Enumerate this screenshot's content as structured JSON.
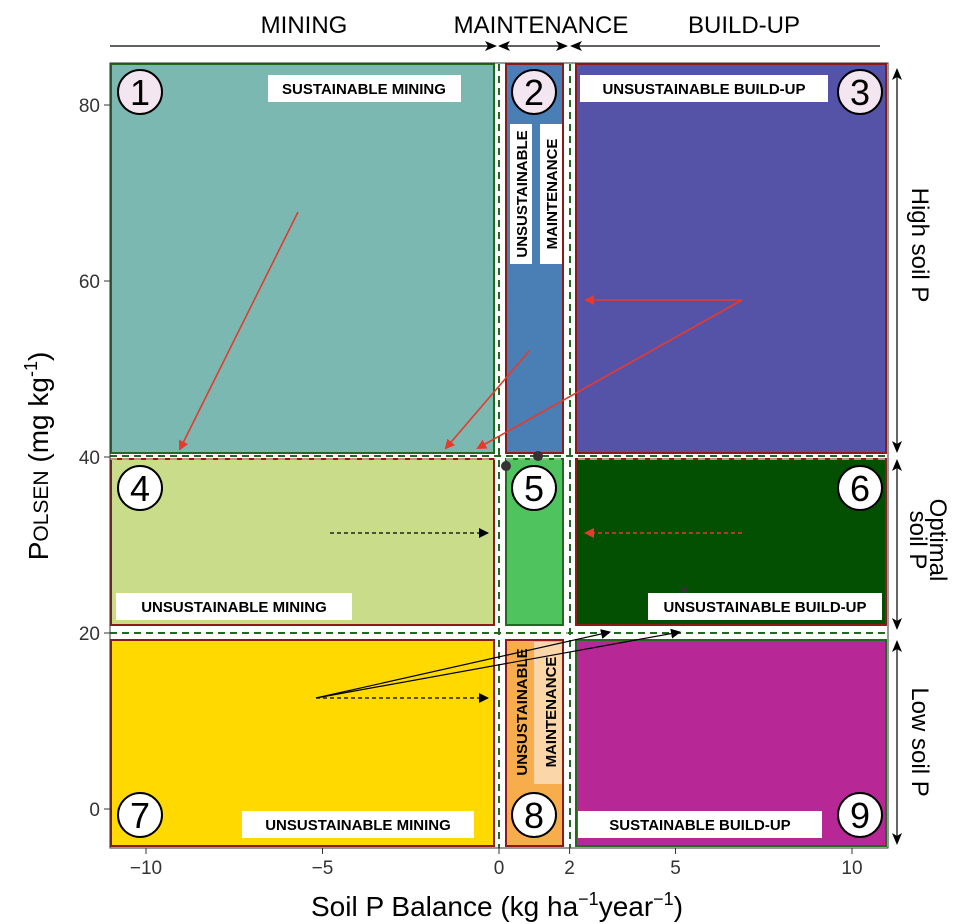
{
  "colors": {
    "z1": "#7bb8b1",
    "z2": "#4a7fb5",
    "z3": "#5453a8",
    "z4": "#c9dc8a",
    "z5": "#4fc45e",
    "z6": "#035003",
    "z7": "#ffd900",
    "z8": "#f7ad4c",
    "z8_inner": "#fbd6a8",
    "z9": "#b72796",
    "red_arrow": "#e8392b",
    "green_border": "#1f6a1f",
    "red_border": "#8b1a1a"
  },
  "top_labels": {
    "mining": "MINING",
    "maintenance": "MAINTENANCE",
    "buildup": "BUILD-UP"
  },
  "side_labels": {
    "high": "High soil P",
    "optimal_1": "Optimal",
    "optimal_2": "soil P",
    "low": "Low soil P"
  },
  "zones": {
    "z1": {
      "number": "1",
      "label": "SUSTAINABLE MINING"
    },
    "z2": {
      "number": "2",
      "label_1": "UNSUSTAINABLE",
      "label_2": "MAINTENANCE"
    },
    "z3": {
      "number": "3",
      "label": "UNSUSTAINABLE BUILD-UP"
    },
    "z4": {
      "number": "4",
      "label": "UNSUSTAINABLE MINING"
    },
    "z5": {
      "number": "5"
    },
    "z6": {
      "number": "6",
      "label": "UNSUSTAINABLE BUILD-UP"
    },
    "z7": {
      "number": "7",
      "label": "UNSUSTAINABLE MINING"
    },
    "z8": {
      "number": "8",
      "label_1": "UNSUSTAINABLE",
      "label_2": "MAINTENANCE"
    },
    "z9": {
      "number": "9",
      "label": "SUSTAINABLE BUILD-UP"
    }
  },
  "axes": {
    "x_title_main": "Soil P Balance (kg ha",
    "x_title_exp1": "−1",
    "x_title_mid": "year",
    "x_title_exp2": "−1",
    "x_title_end": ")",
    "y_title_main": "P",
    "y_title_sub": "OLSEN",
    "y_title_unit": " (mg kg",
    "y_title_exp": "-1",
    "y_title_end": ")",
    "x_ticks": [
      {
        "value": -10,
        "label": "−10"
      },
      {
        "value": -5,
        "label": "−5"
      },
      {
        "value": 0,
        "label": "0"
      },
      {
        "value": 2,
        "label": "2"
      },
      {
        "value": 5,
        "label": "5"
      },
      {
        "value": 10,
        "label": "10"
      }
    ],
    "y_ticks": [
      {
        "value": 0,
        "label": "0"
      },
      {
        "value": 20,
        "label": "20"
      },
      {
        "value": 40,
        "label": "40"
      },
      {
        "value": 60,
        "label": "60"
      },
      {
        "value": 80,
        "label": "80"
      }
    ]
  }
}
